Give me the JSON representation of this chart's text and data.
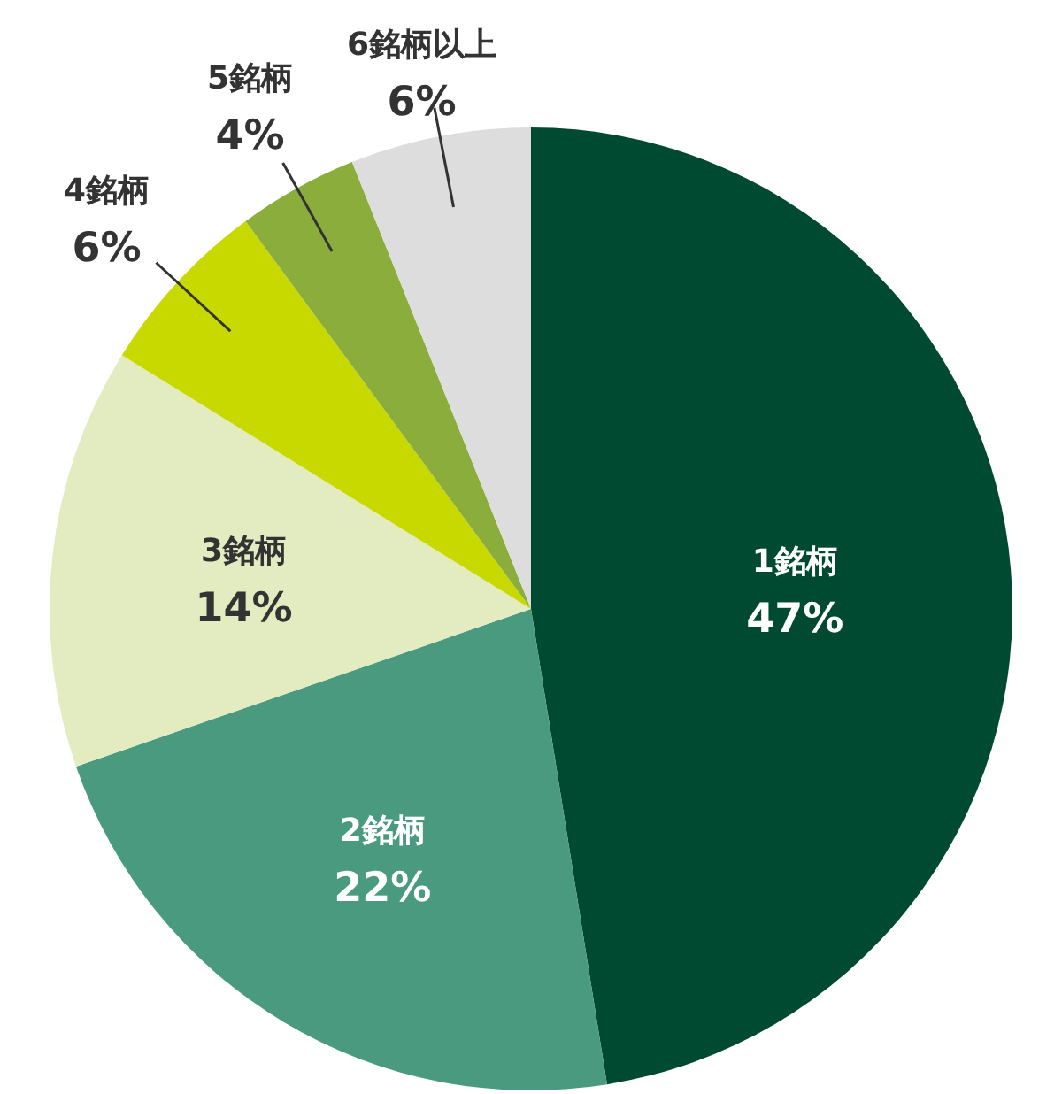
{
  "chart_data": {
    "type": "pie",
    "categories": [
      "1銘柄",
      "2銘柄",
      "3銘柄",
      "4銘柄",
      "5銘柄",
      "6銘柄以上"
    ],
    "values": [
      47,
      22,
      14,
      6,
      4,
      6
    ],
    "value_labels": [
      "47%",
      "22%",
      "14%",
      "6%",
      "4%",
      "6%"
    ],
    "colors": [
      "#004a32",
      "#4a9a80",
      "#e2ecc0",
      "#c8d900",
      "#8aad3c",
      "#dddddd"
    ]
  }
}
